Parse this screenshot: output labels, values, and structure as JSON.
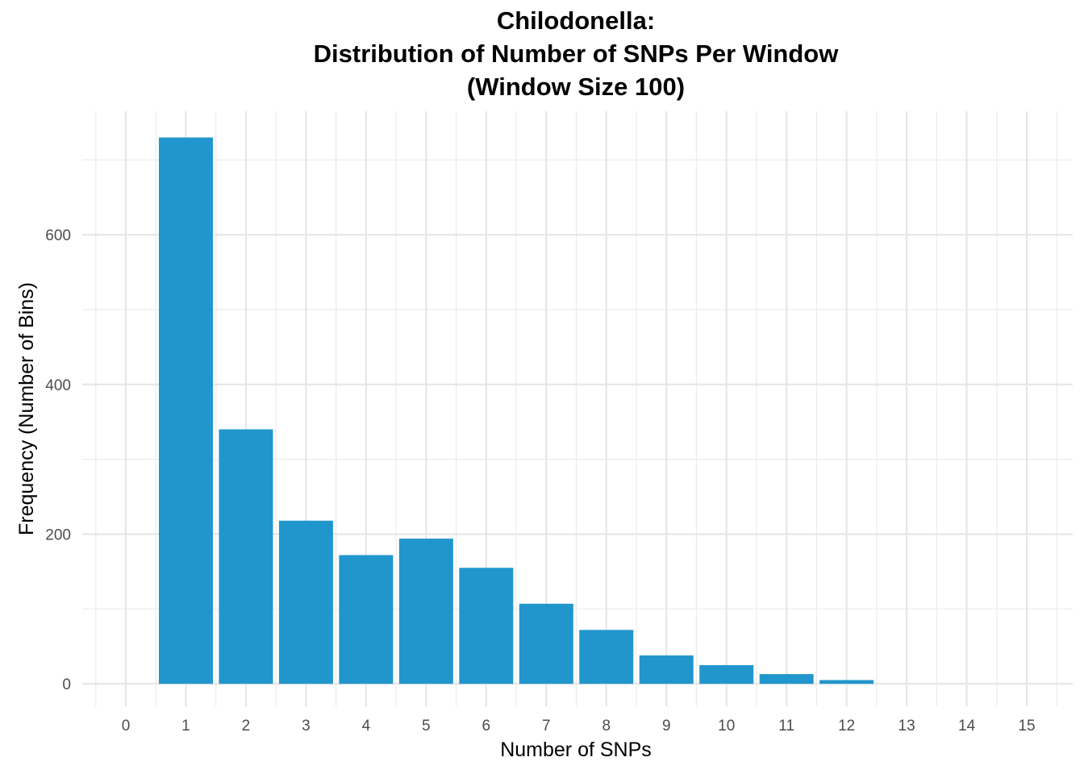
{
  "chart_data": {
    "type": "bar",
    "title_lines": [
      "Chilodonella:",
      "Distribution of Number of SNPs Per Window",
      "(Window Size 100)"
    ],
    "xlabel": "Number of SNPs",
    "ylabel": "Frequency (Number of Bins)",
    "categories": [
      "0",
      "1",
      "2",
      "3",
      "4",
      "5",
      "6",
      "7",
      "8",
      "9",
      "10",
      "11",
      "12",
      "13",
      "14",
      "15"
    ],
    "values": [
      0,
      730,
      340,
      218,
      172,
      194,
      155,
      107,
      72,
      38,
      25,
      13,
      5,
      0,
      0,
      0
    ],
    "y_ticks": [
      "0",
      "200",
      "400",
      "600"
    ],
    "ylim": [
      -30,
      765
    ],
    "bar_color": "#2196CC",
    "grid": true,
    "legend": "none"
  }
}
